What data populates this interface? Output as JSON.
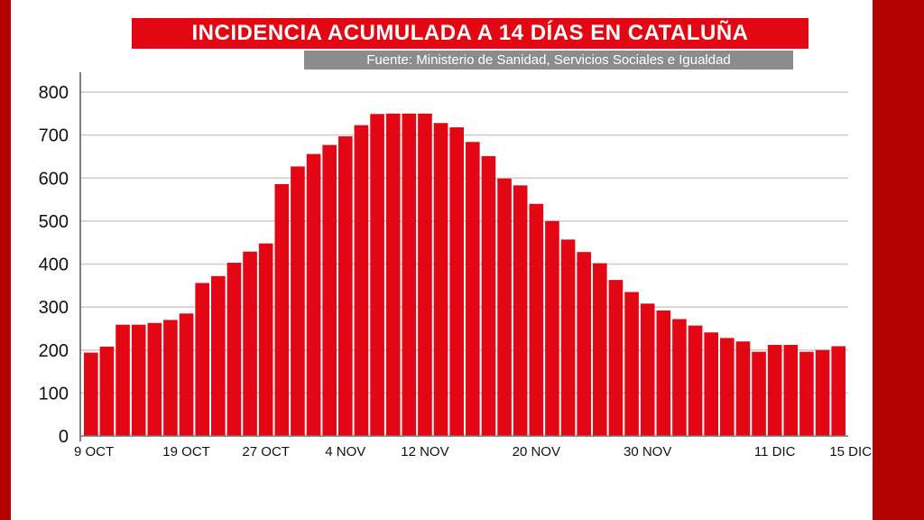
{
  "title": "INCIDENCIA ACUMULADA A 14 DÍAS EN CATALUÑA",
  "source": "Fuente: Ministerio de Sanidad, Servicios Sociales e Igualdad",
  "colors": {
    "bar": "#e30613",
    "frame": "#b30000",
    "title_bg": "#e30613",
    "source_bg": "#8c8c8c",
    "grid": "#cccccc"
  },
  "chart_data": {
    "type": "bar",
    "title": "INCIDENCIA ACUMULADA A 14 DÍAS EN CATALUÑA",
    "xlabel": "",
    "ylabel": "",
    "ylim": [
      0,
      800
    ],
    "yticks": [
      0,
      100,
      200,
      300,
      400,
      500,
      600,
      700,
      800
    ],
    "grid": true,
    "x_tick_labels": [
      {
        "index": 0,
        "label": "9 OCT"
      },
      {
        "index": 6,
        "label": "19 OCT"
      },
      {
        "index": 11,
        "label": "27 OCT"
      },
      {
        "index": 16,
        "label": "4 NOV"
      },
      {
        "index": 21,
        "label": "12 NOV"
      },
      {
        "index": 28,
        "label": "20 NOV"
      },
      {
        "index": 35,
        "label": "30 NOV"
      },
      {
        "index": 43,
        "label": "11 DIC"
      },
      {
        "index": 47,
        "label": "15 DIC"
      }
    ],
    "values": [
      194,
      208,
      259,
      259,
      263,
      270,
      285,
      356,
      372,
      403,
      429,
      448,
      586,
      627,
      656,
      677,
      697,
      723,
      749,
      750,
      750,
      750,
      728,
      718,
      684,
      651,
      599,
      583,
      540,
      500,
      457,
      428,
      402,
      363,
      335,
      308,
      292,
      272,
      257,
      241,
      228,
      220,
      196,
      212,
      212,
      196,
      200,
      209
    ]
  }
}
